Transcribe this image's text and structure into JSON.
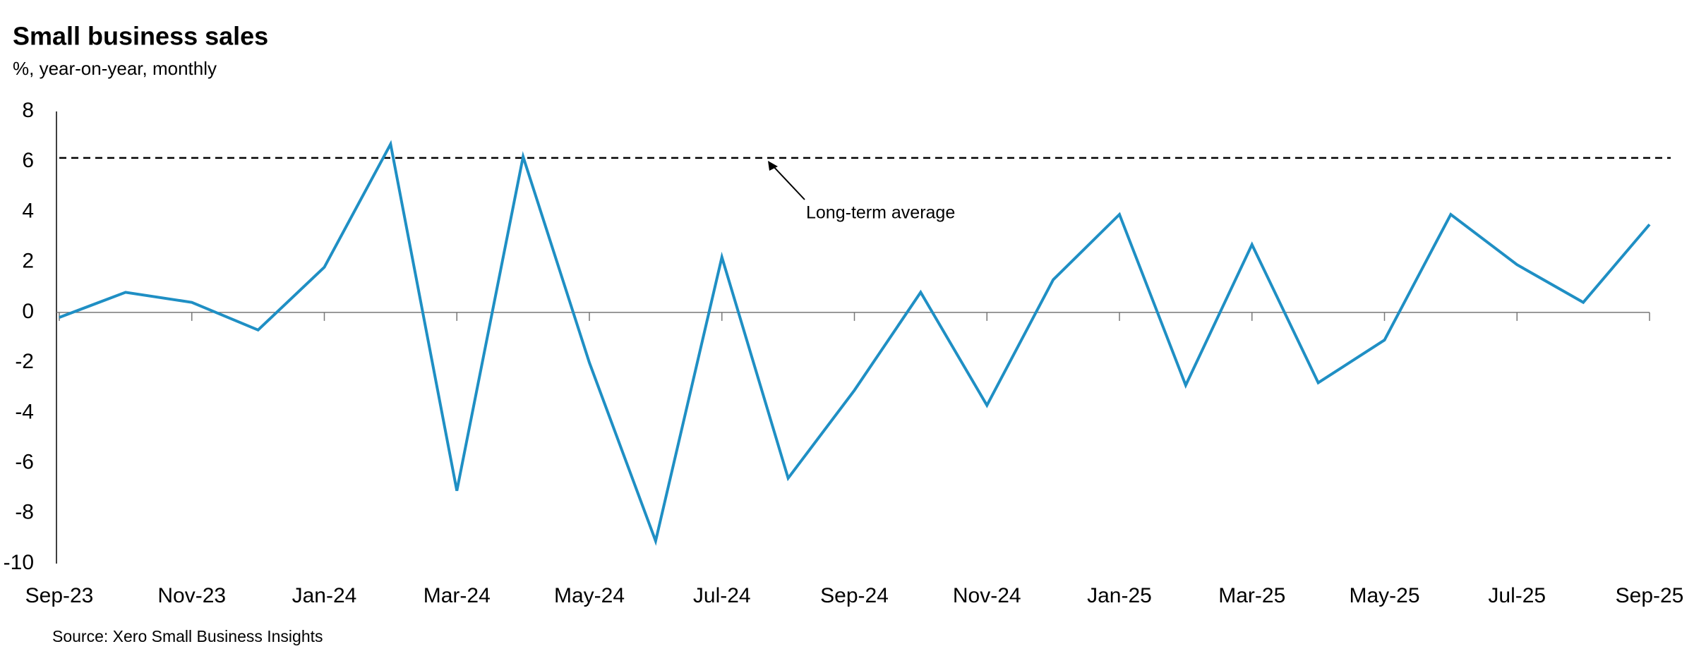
{
  "chart_data": {
    "type": "line",
    "title": "Small business sales",
    "subtitle": "%, year-on-year, monthly",
    "source": "Source: Xero Small Business Insights",
    "categories": [
      "Sep-23",
      null,
      "Nov-23",
      null,
      "Jan-24",
      null,
      "Mar-24",
      null,
      "May-24",
      null,
      "Jul-24",
      null,
      "Sep-24",
      null,
      "Nov-24",
      null,
      "Jan-25",
      null,
      "Mar-25",
      null,
      "May-25",
      null,
      "Jul-25",
      null,
      "Sep-25"
    ],
    "series": [
      {
        "name": "Small business sales",
        "color": "#1f8fc4",
        "values": [
          -0.2,
          0.8,
          0.4,
          -0.7,
          1.8,
          6.7,
          -7.1,
          6.2,
          -2.0,
          -9.1,
          2.2,
          -6.6,
          -3.1,
          0.8,
          -3.7,
          1.3,
          3.9,
          -2.9,
          2.7,
          -2.8,
          -1.1,
          3.9,
          1.9,
          0.4,
          3.5
        ]
      }
    ],
    "long_term_average": 6.15,
    "annotation": "Long-term average",
    "ylim": [
      -10,
      8
    ],
    "yticks": [
      8,
      6,
      4,
      2,
      0,
      -2,
      -4,
      -6,
      -8,
      -10
    ]
  }
}
